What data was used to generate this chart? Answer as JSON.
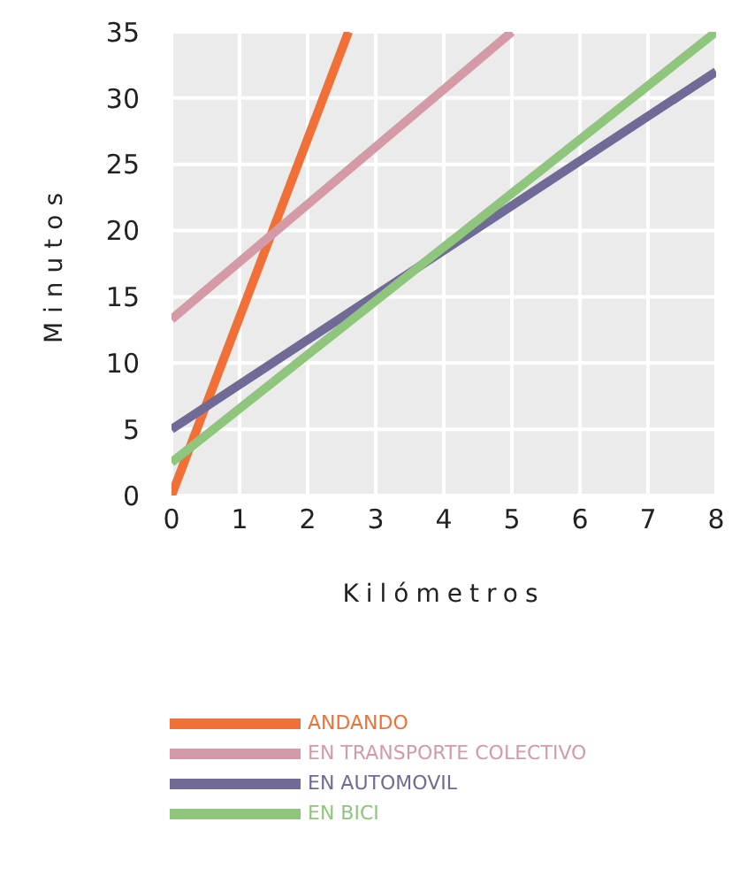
{
  "chart_data": {
    "type": "line",
    "xlabel": "Kilómetros",
    "ylabel": "Minutos",
    "xlim": [
      0,
      8
    ],
    "ylim": [
      0,
      35
    ],
    "xticks": [
      0,
      1,
      2,
      3,
      4,
      5,
      6,
      7,
      8
    ],
    "yticks": [
      0,
      5,
      10,
      15,
      20,
      25,
      30,
      35
    ],
    "grid": true,
    "legend": "bottom",
    "marker": "none",
    "line_style": "solid",
    "series": [
      {
        "name": "ANDANDO",
        "color": "#f07038",
        "x": [
          0,
          2.6
        ],
        "values": [
          0,
          35
        ]
      },
      {
        "name": "EN TRANSPORTE COLECTIVO",
        "color": "#d49aa8",
        "x": [
          0,
          5
        ],
        "values": [
          13.3,
          35
        ]
      },
      {
        "name": "EN AUTOMOVIL",
        "color": "#6f6b96",
        "x": [
          0,
          8
        ],
        "values": [
          5,
          32
        ]
      },
      {
        "name": "EN BICI",
        "color": "#8fc57c",
        "x": [
          0,
          8
        ],
        "values": [
          2.5,
          35
        ]
      }
    ]
  }
}
